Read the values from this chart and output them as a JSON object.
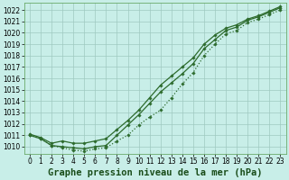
{
  "title": "Graphe pression niveau de la mer (hPa)",
  "background_color": "#c8eee8",
  "grid_color": "#9fc9c0",
  "line_color": "#2d6b2d",
  "x_hours": [
    0,
    1,
    2,
    3,
    4,
    5,
    6,
    7,
    8,
    9,
    10,
    11,
    12,
    13,
    14,
    15,
    16,
    17,
    18,
    19,
    20,
    21,
    22,
    23
  ],
  "s_upper": [
    1011.1,
    1010.8,
    1010.3,
    1010.5,
    1010.3,
    1010.3,
    1010.5,
    1010.7,
    1011.5,
    1012.3,
    1013.2,
    1014.3,
    1015.4,
    1016.2,
    1017.0,
    1017.8,
    1019.0,
    1019.8,
    1020.4,
    1020.7,
    1021.2,
    1021.5,
    1021.9,
    1022.3
  ],
  "s_middle": [
    1011.0,
    1010.7,
    1010.1,
    1010.0,
    1009.9,
    1009.8,
    1010.0,
    1010.1,
    1011.0,
    1011.9,
    1012.8,
    1013.8,
    1014.8,
    1015.6,
    1016.4,
    1017.3,
    1018.6,
    1019.4,
    1020.2,
    1020.5,
    1021.1,
    1021.4,
    1021.8,
    1022.2
  ],
  "s_lower": [
    1011.0,
    1010.7,
    1010.1,
    1009.9,
    1009.7,
    1009.6,
    1009.8,
    1009.9,
    1010.5,
    1011.0,
    1011.9,
    1012.6,
    1013.2,
    1014.3,
    1015.5,
    1016.5,
    1018.0,
    1019.0,
    1019.9,
    1020.2,
    1020.9,
    1021.2,
    1021.6,
    1022.0
  ],
  "ylim_min": 1009.4,
  "ylim_max": 1022.6,
  "yticks": [
    1010,
    1011,
    1012,
    1013,
    1014,
    1015,
    1016,
    1017,
    1018,
    1019,
    1020,
    1021,
    1022
  ],
  "xlim_min": -0.5,
  "xlim_max": 23.5,
  "title_fontsize": 7.5,
  "tick_fontsize": 5.5
}
